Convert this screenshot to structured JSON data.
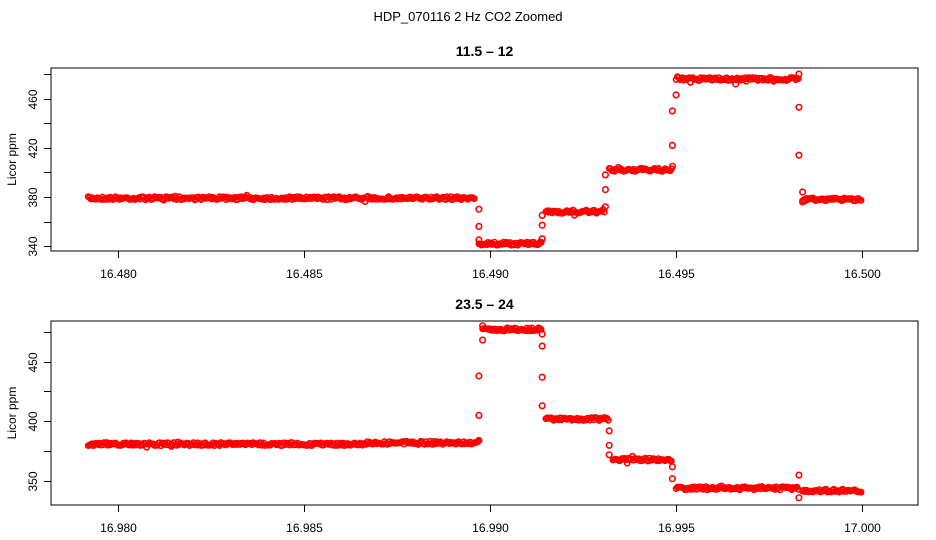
{
  "title": "HDP_070116  2 Hz CO2 Zoomed",
  "colors": {
    "points": "#ff0000",
    "axes": "#000000",
    "background": "#ffffff"
  },
  "chart_data": [
    {
      "type": "scatter",
      "title": "11.5 – 12",
      "xlabel": "",
      "ylabel": "Licor ppm",
      "xlim": [
        16.4782,
        16.5015
      ],
      "ylim": [
        336,
        485
      ],
      "xticks": [
        16.48,
        16.485,
        16.49,
        16.495,
        16.5
      ],
      "xtick_labels": [
        "16.480",
        "16.485",
        "16.490",
        "16.495",
        "16.500"
      ],
      "yticks": [
        340,
        360,
        380,
        400,
        420,
        440,
        460,
        480
      ],
      "ytick_labels": [
        "340",
        "",
        "380",
        "",
        "420",
        "",
        "460",
        ""
      ],
      "grid": false,
      "marker": "open-circle",
      "segments": [
        {
          "x_start": 16.4792,
          "x_end": 16.4896,
          "y": 379
        },
        {
          "x_start": 16.4897,
          "x_end": 16.4914,
          "y": 342
        },
        {
          "x_start": 16.4915,
          "x_end": 16.4931,
          "y": 368
        },
        {
          "x_start": 16.4932,
          "x_end": 16.4949,
          "y": 402
        },
        {
          "x_start": 16.495,
          "x_end": 16.4983,
          "y": 476
        },
        {
          "x_start": 16.4984,
          "x_end": 16.5,
          "y": 378
        }
      ],
      "transition_points": [
        {
          "x": 16.4897,
          "y": 370
        },
        {
          "x": 16.4897,
          "y": 356
        },
        {
          "x": 16.4897,
          "y": 345
        },
        {
          "x": 16.4914,
          "y": 346
        },
        {
          "x": 16.4914,
          "y": 357
        },
        {
          "x": 16.4914,
          "y": 365
        },
        {
          "x": 16.4931,
          "y": 372
        },
        {
          "x": 16.4931,
          "y": 386
        },
        {
          "x": 16.4931,
          "y": 398
        },
        {
          "x": 16.4949,
          "y": 405
        },
        {
          "x": 16.4949,
          "y": 422
        },
        {
          "x": 16.4949,
          "y": 450
        },
        {
          "x": 16.495,
          "y": 463
        },
        {
          "x": 16.4966,
          "y": 472
        },
        {
          "x": 16.4983,
          "y": 480
        },
        {
          "x": 16.4983,
          "y": 453
        },
        {
          "x": 16.4983,
          "y": 414
        },
        {
          "x": 16.4984,
          "y": 384
        },
        {
          "x": 16.4984,
          "y": 376
        }
      ]
    },
    {
      "type": "scatter",
      "title": "23.5 – 24",
      "xlabel": "",
      "ylabel": "Licor ppm",
      "xlim": [
        16.9782,
        17.0015
      ],
      "ylim": [
        330,
        484
      ],
      "xticks": [
        16.98,
        16.985,
        16.99,
        16.995,
        17.0
      ],
      "xtick_labels": [
        "16.980",
        "16.985",
        "16.990",
        "16.995",
        "17.000"
      ],
      "yticks": [
        350,
        375,
        400,
        425,
        450,
        475
      ],
      "ytick_labels": [
        "350",
        "",
        "400",
        "",
        "450",
        ""
      ],
      "grid": false,
      "marker": "open-circle",
      "segments": [
        {
          "x_start": 16.9792,
          "x_end": 16.9866,
          "y": 381
        },
        {
          "x_start": 16.9866,
          "x_end": 16.9897,
          "y": 382
        },
        {
          "x_start": 16.9898,
          "x_end": 16.9914,
          "y": 477
        },
        {
          "x_start": 16.9915,
          "x_end": 16.9932,
          "y": 402
        },
        {
          "x_start": 16.9933,
          "x_end": 16.9949,
          "y": 368
        },
        {
          "x_start": 16.995,
          "x_end": 16.9983,
          "y": 344
        },
        {
          "x_start": 16.9984,
          "x_end": 17.0,
          "y": 342
        }
      ],
      "transition_points": [
        {
          "x": 16.9897,
          "y": 384
        },
        {
          "x": 16.9897,
          "y": 405
        },
        {
          "x": 16.9897,
          "y": 438
        },
        {
          "x": 16.9898,
          "y": 468
        },
        {
          "x": 16.9898,
          "y": 480
        },
        {
          "x": 16.9914,
          "y": 473
        },
        {
          "x": 16.9914,
          "y": 463
        },
        {
          "x": 16.9914,
          "y": 437
        },
        {
          "x": 16.9914,
          "y": 413
        },
        {
          "x": 16.9932,
          "y": 392
        },
        {
          "x": 16.9932,
          "y": 380
        },
        {
          "x": 16.9932,
          "y": 372
        },
        {
          "x": 16.9949,
          "y": 362
        },
        {
          "x": 16.9949,
          "y": 352
        },
        {
          "x": 16.9983,
          "y": 355
        },
        {
          "x": 16.9983,
          "y": 336
        }
      ]
    }
  ]
}
